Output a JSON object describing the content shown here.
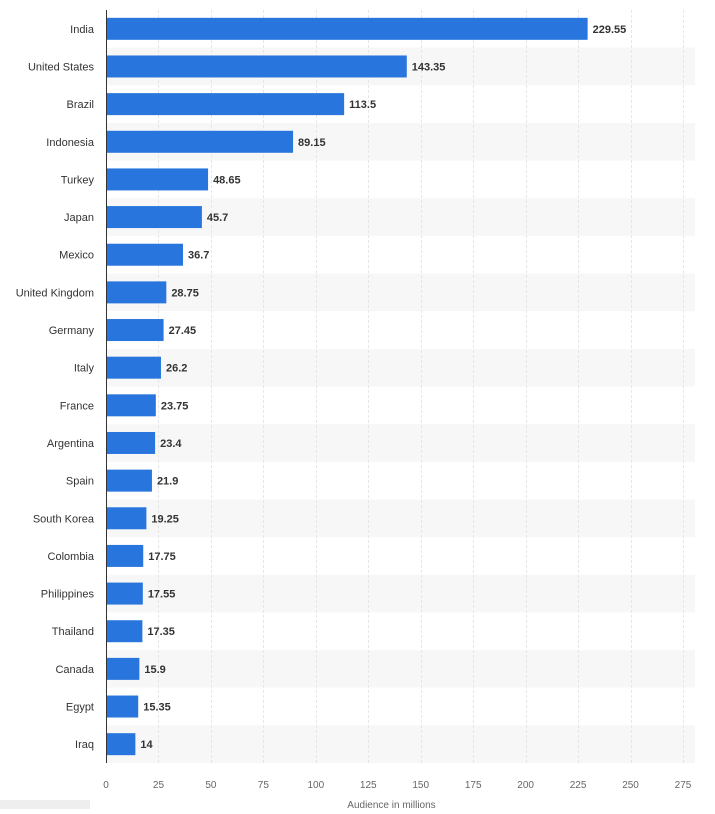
{
  "chart_data": {
    "type": "bar",
    "orientation": "horizontal",
    "categories": [
      "India",
      "United States",
      "Brazil",
      "Indonesia",
      "Turkey",
      "Japan",
      "Mexico",
      "United Kingdom",
      "Germany",
      "Italy",
      "France",
      "Argentina",
      "Spain",
      "South Korea",
      "Colombia",
      "Philippines",
      "Thailand",
      "Canada",
      "Egypt",
      "Iraq"
    ],
    "values": [
      229.55,
      143.35,
      113.5,
      89.15,
      48.65,
      45.7,
      36.7,
      28.75,
      27.45,
      26.2,
      23.75,
      23.4,
      21.9,
      19.25,
      17.75,
      17.55,
      17.35,
      15.9,
      15.35,
      14
    ],
    "value_labels": [
      "229.55",
      "143.35",
      "113.5",
      "89.15",
      "48.65",
      "45.7",
      "36.7",
      "28.75",
      "27.45",
      "26.2",
      "23.75",
      "23.4",
      "21.9",
      "19.25",
      "17.75",
      "17.55",
      "17.35",
      "15.9",
      "15.35",
      "14"
    ],
    "xlabel": "Audience in millions",
    "ylabel": "",
    "title": "",
    "xlim": [
      0,
      275
    ],
    "xticks": [
      0,
      25,
      50,
      75,
      100,
      125,
      150,
      175,
      200,
      225,
      250,
      275
    ],
    "grid": true,
    "legend": "none",
    "colors": {
      "bar": "#2876dd",
      "band": "#f7f7f7",
      "grid": "#e6e6e6",
      "axis": "#333333"
    }
  }
}
